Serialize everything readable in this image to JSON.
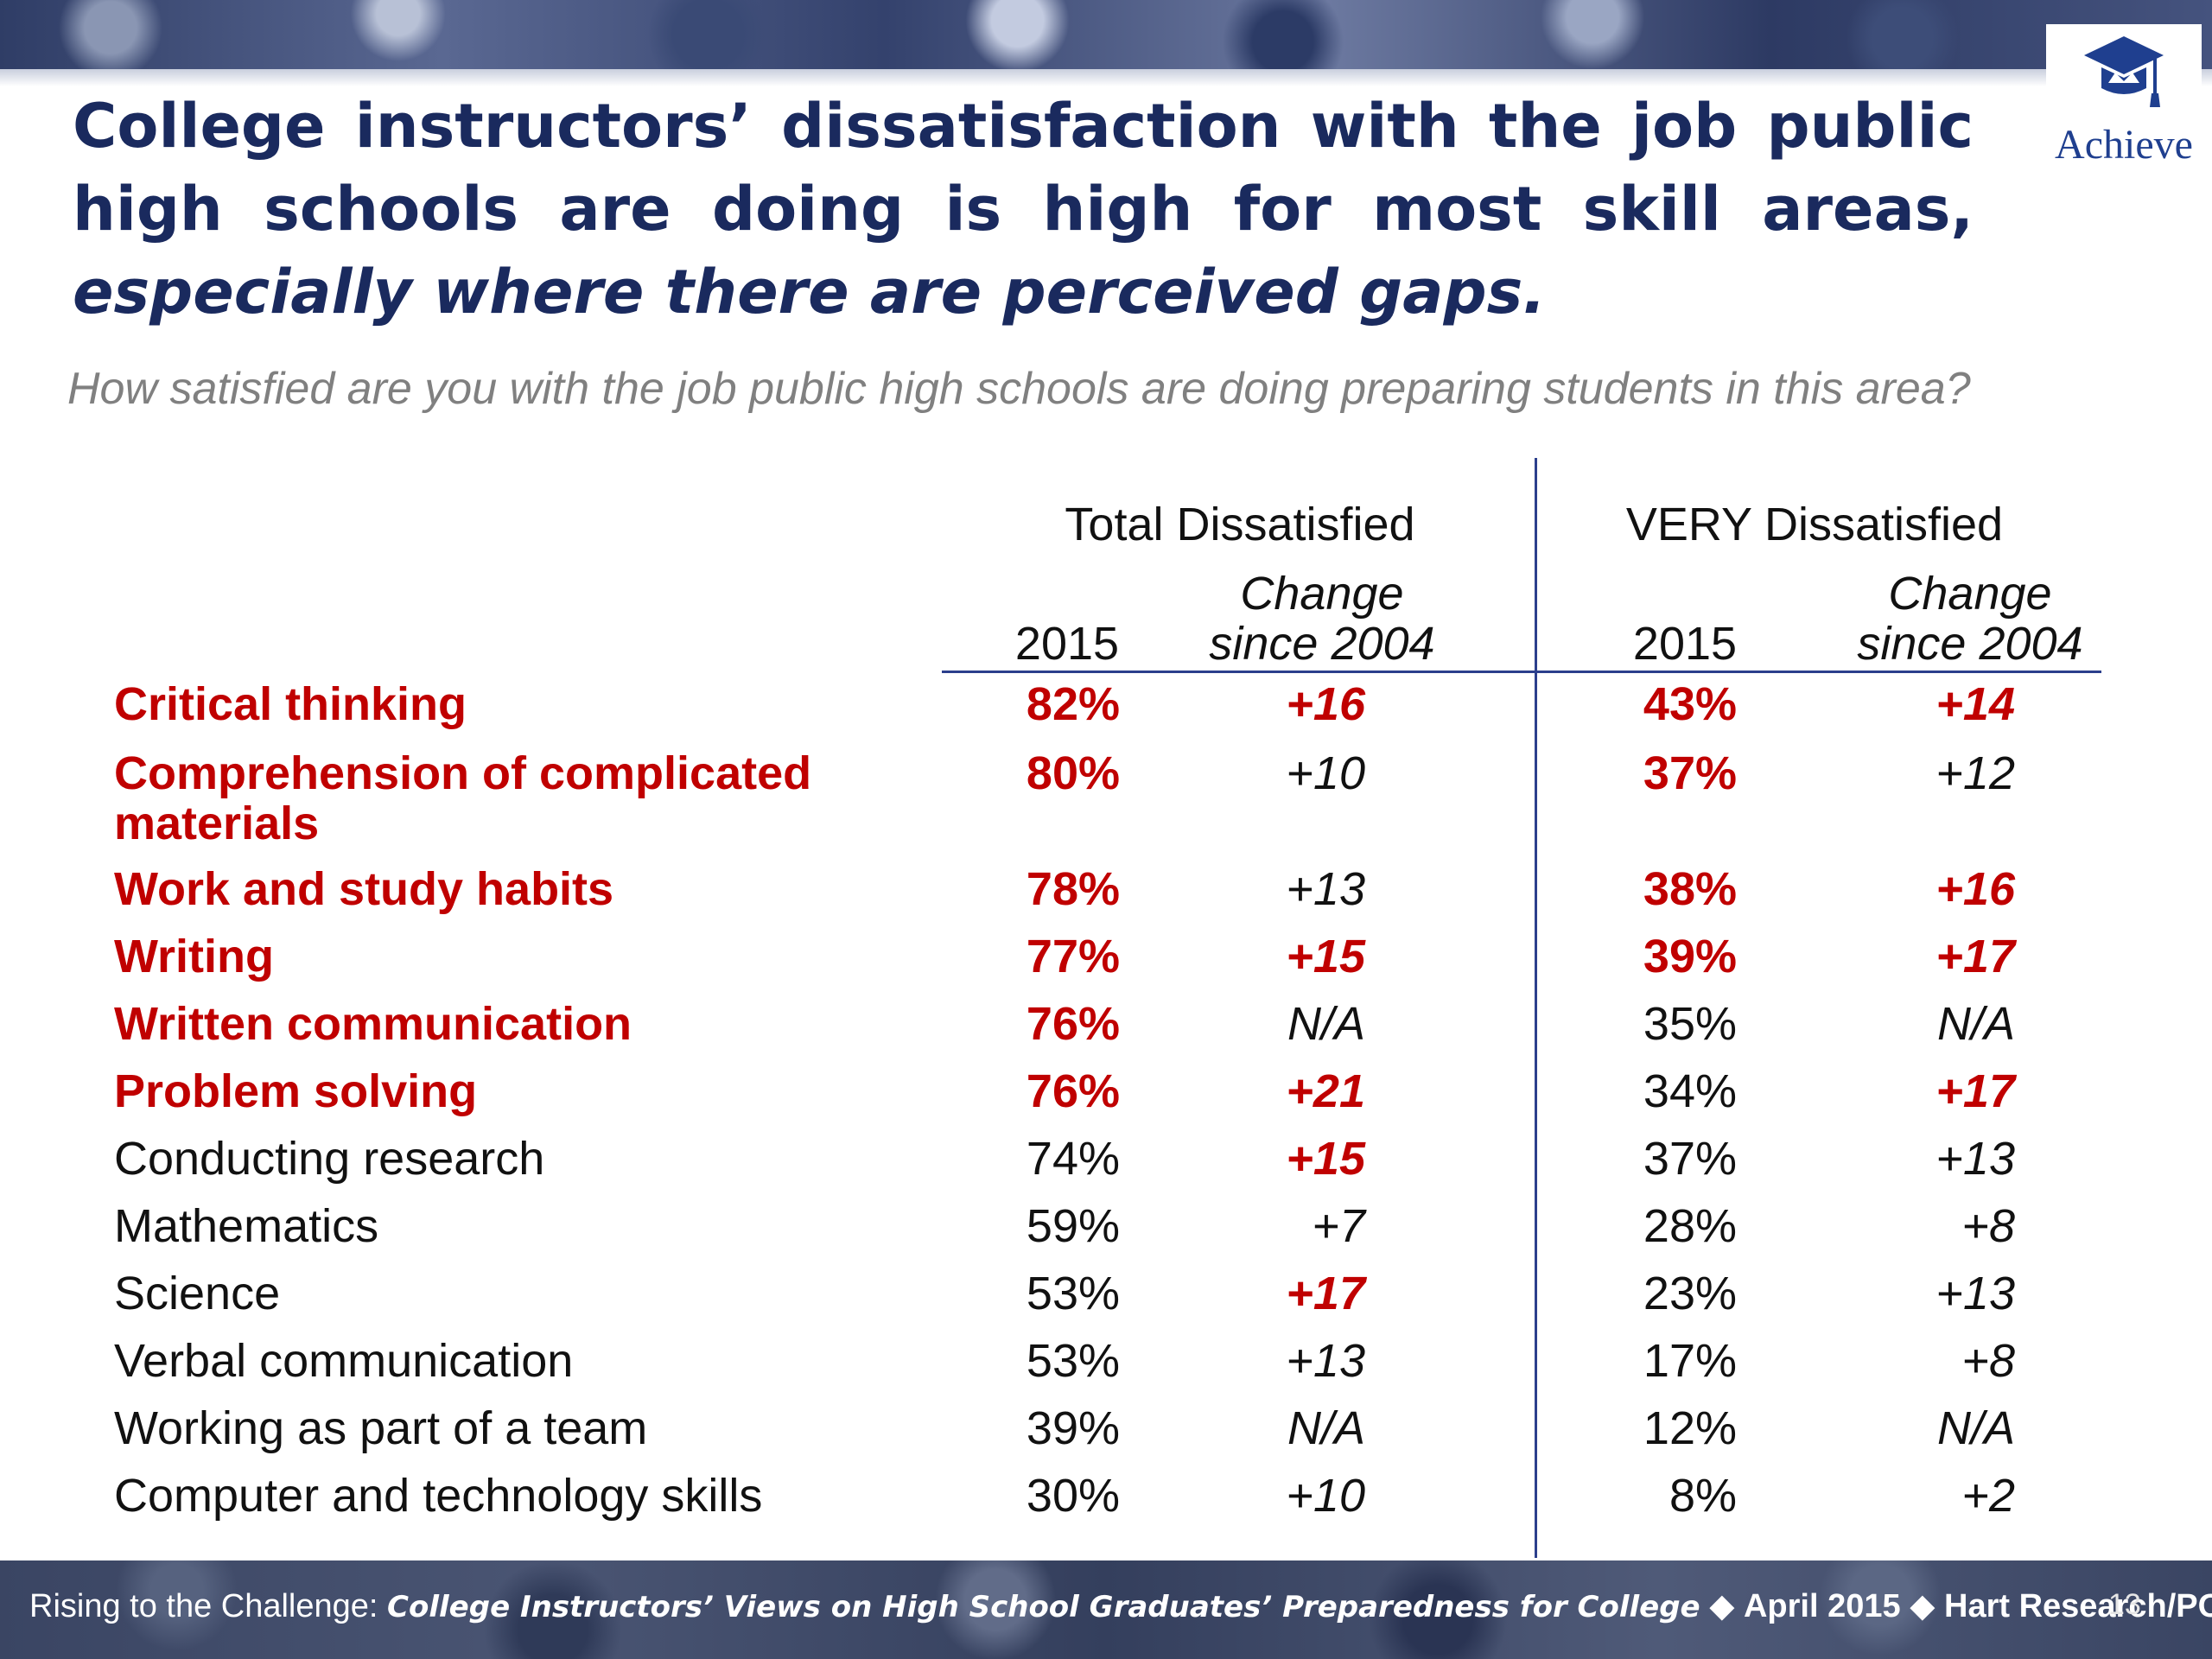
{
  "slide": {
    "title_part1": "College instructors’ dissatisfaction with the job public high schools are doing is high for most skill areas, ",
    "title_part2": "especially where there are perceived gaps.",
    "subtitle": "How satisfied are you with the job public high schools are doing preparing students in this area?",
    "logo_text": "Achieve",
    "page_number": "13"
  },
  "footer": {
    "part1": "Rising to the Challenge:",
    "part2": "College Instructors’ Views on High School Graduates’ Preparedness for College",
    "part3": "April 2015",
    "part4": "Hart Research/POS",
    "separator": "◆"
  },
  "colors": {
    "highlight": "#c00000",
    "title": "#1a2a5e",
    "rule": "#2b3f8c"
  },
  "chart_data": {
    "type": "table",
    "column_groups": [
      "Total Dissatisfied",
      "VERY Dissatisfied"
    ],
    "columns": [
      {
        "line1": "",
        "line2": "2015"
      },
      {
        "line1": "Change",
        "line2": "since 2004"
      },
      {
        "line1": "",
        "line2": "2015"
      },
      {
        "line1": "Change",
        "line2": "since 2004"
      }
    ],
    "rows": [
      {
        "label": "Critical thinking",
        "label_hl": true,
        "cells": [
          {
            "v": "82%",
            "hl": true
          },
          {
            "v": "+16",
            "hl": true
          },
          {
            "v": "43%",
            "hl": true
          },
          {
            "v": "+14",
            "hl": true
          }
        ]
      },
      {
        "label": "Comprehension of complicated materials",
        "label_hl": true,
        "cells": [
          {
            "v": "80%",
            "hl": true
          },
          {
            "v": "+10",
            "hl": false
          },
          {
            "v": "37%",
            "hl": true
          },
          {
            "v": "+12",
            "hl": false
          }
        ]
      },
      {
        "label": "Work and study habits",
        "label_hl": true,
        "cells": [
          {
            "v": "78%",
            "hl": true
          },
          {
            "v": "+13",
            "hl": false
          },
          {
            "v": "38%",
            "hl": true
          },
          {
            "v": "+16",
            "hl": true
          }
        ]
      },
      {
        "label": "Writing",
        "label_hl": true,
        "cells": [
          {
            "v": "77%",
            "hl": true
          },
          {
            "v": "+15",
            "hl": true
          },
          {
            "v": "39%",
            "hl": true
          },
          {
            "v": "+17",
            "hl": true
          }
        ]
      },
      {
        "label": "Written communication",
        "label_hl": true,
        "cells": [
          {
            "v": "76%",
            "hl": true
          },
          {
            "v": "N/A",
            "hl": false
          },
          {
            "v": "35%",
            "hl": false
          },
          {
            "v": "N/A",
            "hl": false
          }
        ]
      },
      {
        "label": "Problem solving",
        "label_hl": true,
        "cells": [
          {
            "v": "76%",
            "hl": true
          },
          {
            "v": "+21",
            "hl": true
          },
          {
            "v": "34%",
            "hl": false
          },
          {
            "v": "+17",
            "hl": true
          }
        ]
      },
      {
        "label": "Conducting research",
        "label_hl": false,
        "cells": [
          {
            "v": "74%",
            "hl": false
          },
          {
            "v": "+15",
            "hl": true
          },
          {
            "v": "37%",
            "hl": false
          },
          {
            "v": "+13",
            "hl": false
          }
        ]
      },
      {
        "label": "Mathematics",
        "label_hl": false,
        "cells": [
          {
            "v": "59%",
            "hl": false
          },
          {
            "v": "+7",
            "hl": false
          },
          {
            "v": "28%",
            "hl": false
          },
          {
            "v": "+8",
            "hl": false
          }
        ]
      },
      {
        "label": "Science",
        "label_hl": false,
        "cells": [
          {
            "v": "53%",
            "hl": false
          },
          {
            "v": "+17",
            "hl": true
          },
          {
            "v": "23%",
            "hl": false
          },
          {
            "v": "+13",
            "hl": false
          }
        ]
      },
      {
        "label": "Verbal communication",
        "label_hl": false,
        "cells": [
          {
            "v": "53%",
            "hl": false
          },
          {
            "v": "+13",
            "hl": false
          },
          {
            "v": "17%",
            "hl": false
          },
          {
            "v": "+8",
            "hl": false
          }
        ]
      },
      {
        "label": "Working as part of a team",
        "label_hl": false,
        "cells": [
          {
            "v": "39%",
            "hl": false
          },
          {
            "v": "N/A",
            "hl": false
          },
          {
            "v": "12%",
            "hl": false
          },
          {
            "v": "N/A",
            "hl": false
          }
        ]
      },
      {
        "label": "Computer and technology skills",
        "label_hl": false,
        "cells": [
          {
            "v": "30%",
            "hl": false
          },
          {
            "v": "+10",
            "hl": false
          },
          {
            "v": "8%",
            "hl": false
          },
          {
            "v": "+2",
            "hl": false
          }
        ]
      }
    ]
  }
}
